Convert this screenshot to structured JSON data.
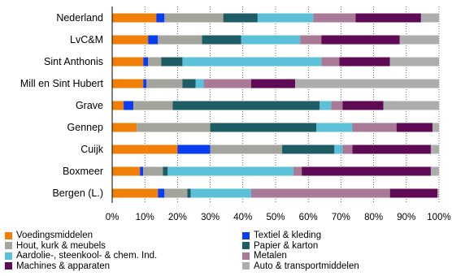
{
  "chart_data": {
    "type": "bar",
    "orientation": "horizontal",
    "stacked": "percent",
    "categories": [
      "Nederland",
      "LvC&M",
      "Sint Anthonis",
      "Mill en Sint Hubert",
      "Grave",
      "Gennep",
      "Cuijk",
      "Boxmeer",
      "Bergen (L.)"
    ],
    "series": [
      {
        "name": "Voedingsmiddelen",
        "color": "#F07F0A",
        "values": [
          13.5,
          11,
          9.5,
          9.5,
          3.5,
          7.5,
          20,
          8.5,
          14
        ]
      },
      {
        "name": "Textiel & kleding",
        "color": "#0A3CF0",
        "values": [
          2.5,
          3,
          1.5,
          1,
          3,
          0,
          10,
          1,
          2
        ]
      },
      {
        "name": "Hout, kurk & meubels",
        "color": "#A3A59C",
        "values": [
          18,
          13.5,
          4,
          11,
          12,
          22.5,
          22,
          6,
          7
        ]
      },
      {
        "name": "Papier & karton",
        "color": "#1E5C66",
        "values": [
          10.5,
          12,
          6.5,
          4,
          45,
          32.5,
          16,
          1.5,
          1
        ]
      },
      {
        "name": "Aardolie-, steenkool- & chem. Ind.",
        "color": "#5BC0D8",
        "values": [
          17,
          18,
          42.5,
          2.5,
          3.5,
          11,
          2.5,
          38.5,
          18.5
        ]
      },
      {
        "name": "Metalen",
        "color": "#A87A96",
        "values": [
          13,
          6.5,
          5.5,
          14.5,
          3.5,
          13.5,
          3,
          2.5,
          42.5
        ]
      },
      {
        "name": "Machines & apparaten",
        "color": "#5E0A55",
        "values": [
          20,
          24,
          15.5,
          13.5,
          12.5,
          11,
          24,
          39.5,
          14.5
        ]
      },
      {
        "name": "Auto & transportmiddelen",
        "color": "#ADADAD",
        "values": [
          5.5,
          12,
          15,
          44,
          17,
          2,
          2.5,
          2.5,
          0.5
        ]
      }
    ],
    "xlim": [
      0,
      100
    ],
    "x_ticks": [
      "0%",
      "10%",
      "20%",
      "30%",
      "40%",
      "50%",
      "60%",
      "70%",
      "80%",
      "90%",
      "100%"
    ],
    "grid": "vertical",
    "legend_placement": "bottom"
  }
}
